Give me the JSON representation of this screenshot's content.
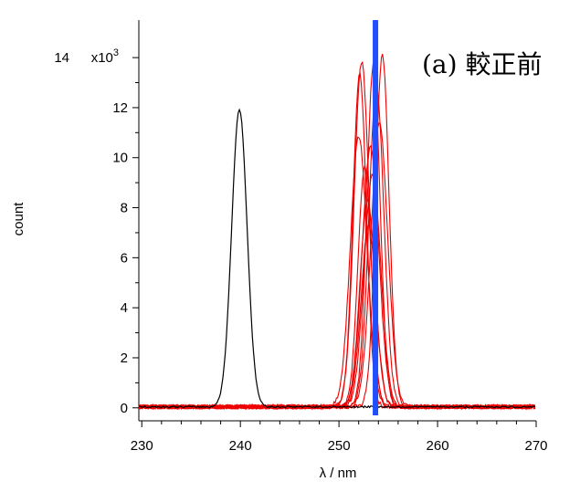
{
  "chart_data": {
    "type": "line",
    "annotation": "(a) 較正前",
    "xlabel": "λ / nm",
    "ylabel": "count",
    "xlim": [
      229.7,
      270
    ],
    "ylim": [
      -300,
      15500
    ],
    "x_ticks": [
      230,
      240,
      250,
      260,
      270
    ],
    "x_tick_labels": [
      "230",
      "240",
      "250",
      "260",
      "270"
    ],
    "y_ticks": [
      0,
      2000,
      4000,
      6000,
      8000,
      10000,
      12000,
      14000
    ],
    "y_tick_labels": [
      "0",
      "2",
      "4",
      "6",
      "8",
      "10",
      "12",
      "14"
    ],
    "y_multiplier_label": "x10",
    "y_multiplier_exponent": "3",
    "grid": false,
    "colors": {
      "reference": "#000000",
      "shifted": "#ee0000",
      "marker": "#1f4fff"
    },
    "reference_peak": {
      "center": 239.9,
      "height": 11900,
      "width": 1.1
    },
    "shifted_peaks": [
      {
        "center": 252.1,
        "height": 13300
      },
      {
        "center": 252.3,
        "height": 13800
      },
      {
        "center": 252.0,
        "height": 10800
      },
      {
        "center": 252.6,
        "height": 9600
      },
      {
        "center": 252.9,
        "height": 8300
      },
      {
        "center": 253.2,
        "height": 10400
      },
      {
        "center": 253.5,
        "height": 13700
      },
      {
        "center": 253.8,
        "height": 12800
      },
      {
        "center": 254.1,
        "height": 11300
      },
      {
        "center": 254.4,
        "height": 14100
      },
      {
        "center": 253.0,
        "height": 7200
      },
      {
        "center": 253.4,
        "height": 9300
      }
    ],
    "marker_line": {
      "x": 253.7,
      "y_top": 15500
    }
  }
}
